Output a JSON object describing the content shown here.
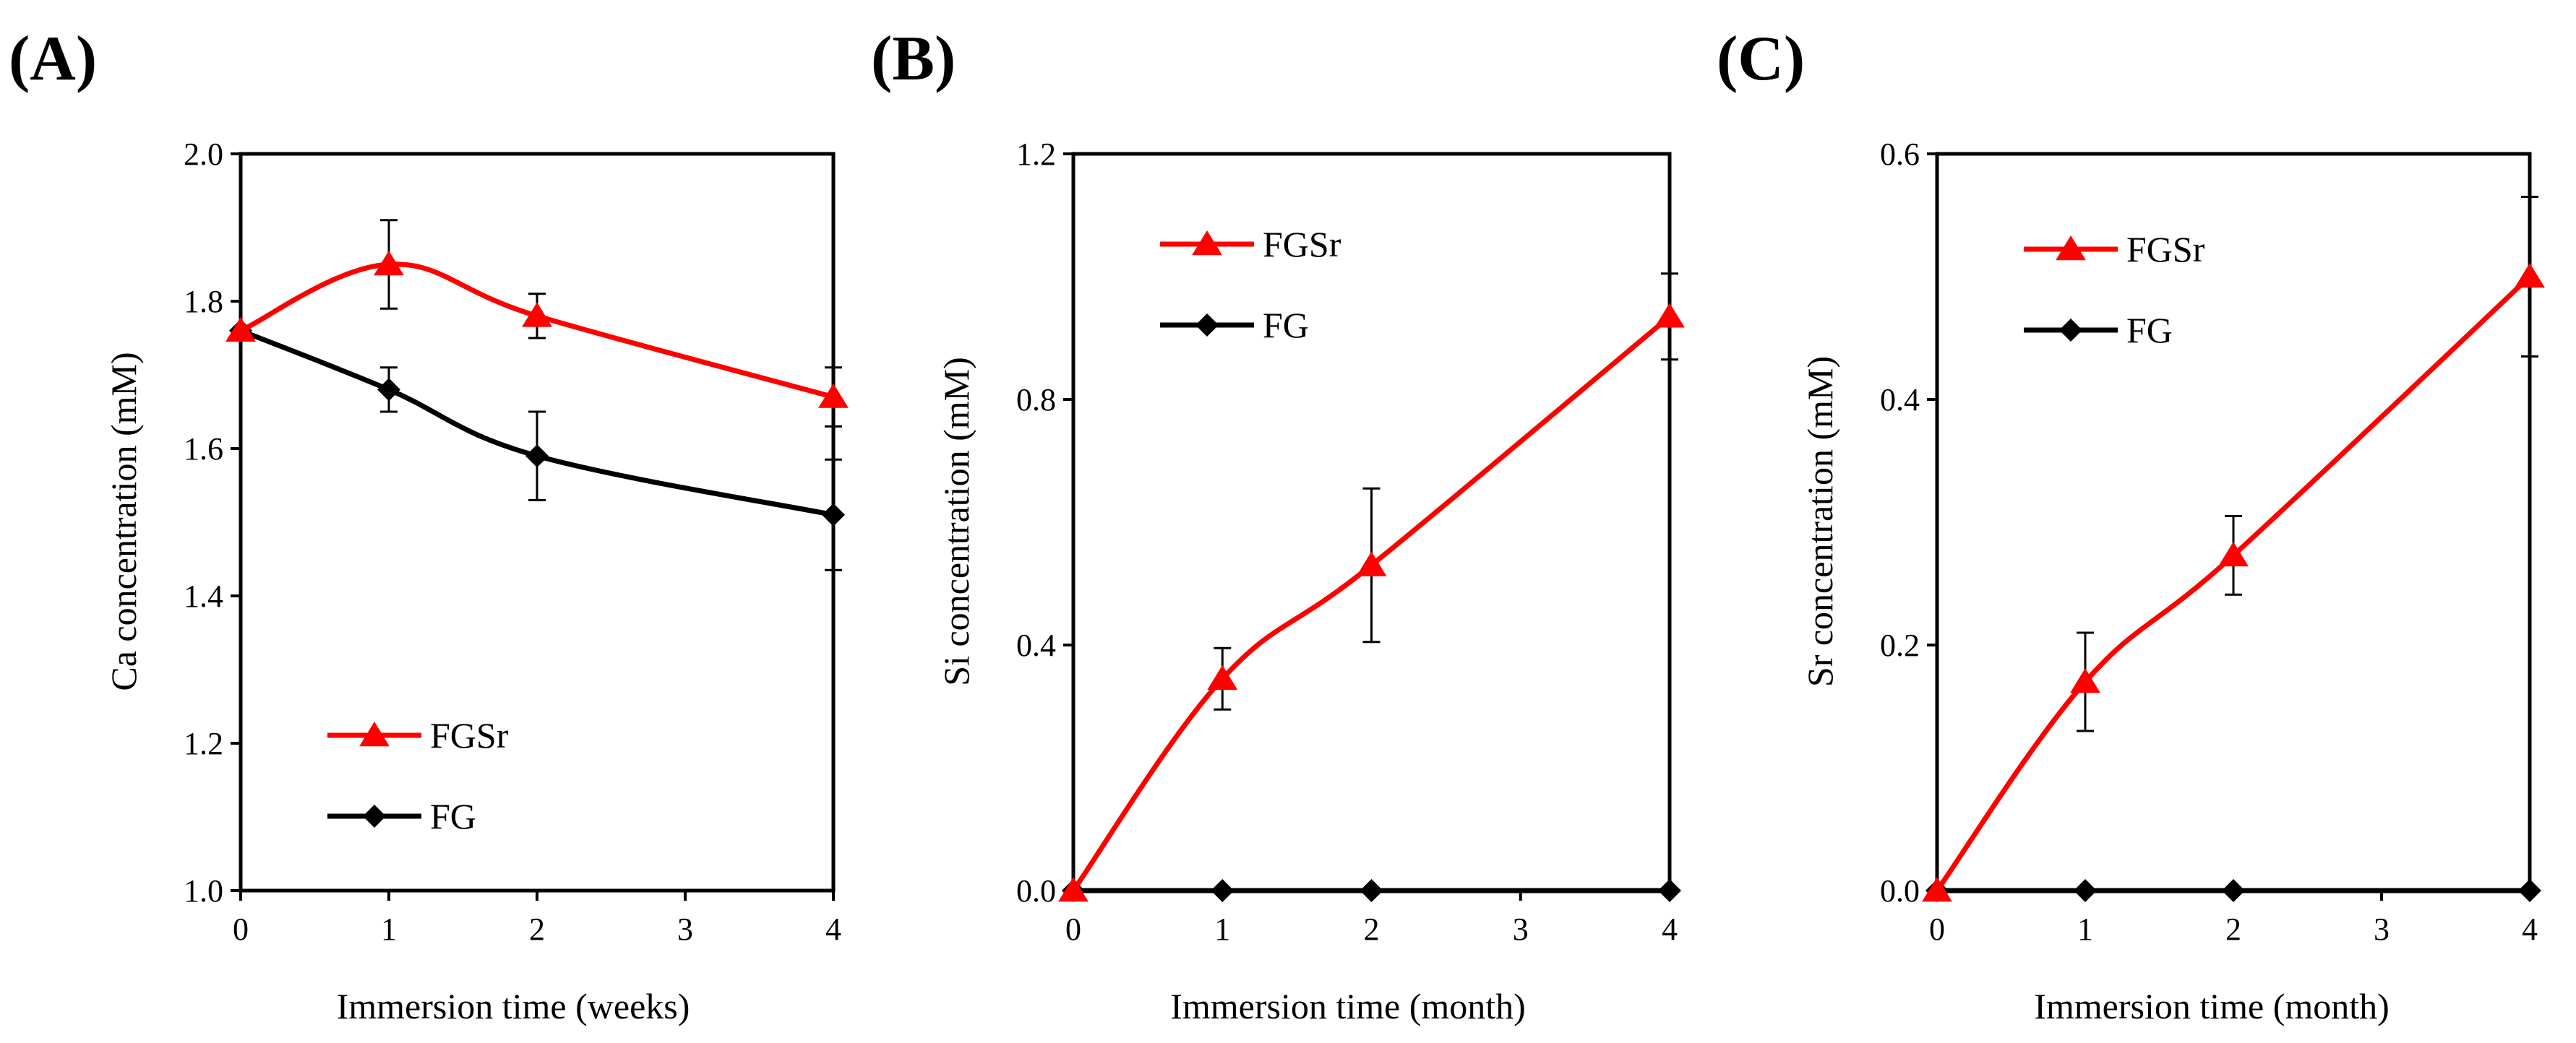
{
  "colors": {
    "fgsr": "#ff0000",
    "fg": "#000000",
    "axis": "#000000"
  },
  "chart_data": [
    {
      "type": "line",
      "panel_label": "(A)",
      "xlabel": "Immersion time (weeks)",
      "ylabel": "Ca concentration (mM)",
      "xlim": [
        0,
        4
      ],
      "ylim": [
        1.0,
        2.0
      ],
      "x_ticks": [
        "0",
        "1",
        "2",
        "3",
        "4"
      ],
      "y_ticks": [
        "1.0",
        "1.2",
        "1.4",
        "1.6",
        "1.8",
        "2.0"
      ],
      "legend_position": "lower-left",
      "series": [
        {
          "name": "FGSr",
          "marker": "triangle",
          "x": [
            0,
            1,
            2,
            4
          ],
          "values": [
            1.76,
            1.85,
            1.78,
            1.67
          ],
          "errors": [
            0,
            0.06,
            0.03,
            0.04
          ]
        },
        {
          "name": "FG",
          "marker": "diamond",
          "x": [
            0,
            1,
            2,
            4
          ],
          "values": [
            1.76,
            1.68,
            1.59,
            1.51
          ],
          "errors": [
            0,
            0.03,
            0.06,
            0.075
          ]
        }
      ]
    },
    {
      "type": "line",
      "panel_label": "(B)",
      "xlabel": "Immersion time (month)",
      "ylabel": "Si concentration (mM)",
      "xlim": [
        0,
        4
      ],
      "ylim": [
        0,
        1.2
      ],
      "x_ticks": [
        "0",
        "1",
        "2",
        "3",
        "4"
      ],
      "y_ticks": [
        "0.0",
        "0.4",
        "0.8",
        "1.2"
      ],
      "legend_position": "upper-left",
      "series": [
        {
          "name": "FGSr",
          "marker": "triangle",
          "x": [
            0,
            1,
            2,
            4
          ],
          "values": [
            0,
            0.345,
            0.53,
            0.935
          ],
          "errors": [
            0,
            0.05,
            0.125,
            0.07
          ]
        },
        {
          "name": "FG",
          "marker": "diamond",
          "x": [
            0,
            1,
            2,
            4
          ],
          "values": [
            0,
            0,
            0,
            0
          ],
          "errors": [
            0,
            0,
            0,
            0
          ]
        }
      ]
    },
    {
      "type": "line",
      "panel_label": "(C)",
      "xlabel": "Immersion time (month)",
      "ylabel": "Sr concentration (mM)",
      "xlim": [
        0,
        4
      ],
      "ylim": [
        0,
        0.6
      ],
      "x_ticks": [
        "0",
        "1",
        "2",
        "3",
        "4"
      ],
      "y_ticks": [
        "0.0",
        "0.2",
        "0.4",
        "0.6"
      ],
      "legend_position": "upper-left",
      "series": [
        {
          "name": "FGSr",
          "marker": "triangle",
          "x": [
            0,
            1,
            2,
            4
          ],
          "values": [
            0,
            0.17,
            0.273,
            0.5
          ],
          "errors": [
            0,
            0.04,
            0.032,
            0.065
          ]
        },
        {
          "name": "FG",
          "marker": "diamond",
          "x": [
            0,
            1,
            2,
            4
          ],
          "values": [
            0,
            0,
            0,
            0
          ],
          "errors": [
            0,
            0,
            0,
            0
          ]
        }
      ]
    }
  ]
}
